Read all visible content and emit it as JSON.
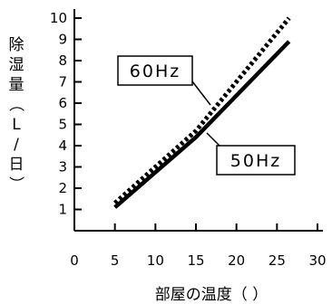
{
  "chart_data": {
    "type": "line",
    "xlabel": "部屋の温度（ ）",
    "ylabel": "除湿量（L/日）",
    "xlim": [
      0,
      30
    ],
    "ylim": [
      0,
      10
    ],
    "x_ticks": [
      "0",
      "5",
      "10",
      "15",
      "20",
      "25",
      "30"
    ],
    "y_ticks": [
      "1",
      "2",
      "3",
      "4",
      "5",
      "6",
      "7",
      "8",
      "9",
      "10"
    ],
    "grid": false,
    "series": [
      {
        "name": "60Hz",
        "style": "dotted",
        "x": [
          5,
          15,
          26.5
        ],
        "y": [
          1.3,
          4.7,
          10
        ]
      },
      {
        "name": "50Hz",
        "style": "solid",
        "x": [
          5,
          15,
          26.5
        ],
        "y": [
          1.1,
          4.4,
          8.9
        ]
      }
    ],
    "annotations": [
      "60Hz",
      "50Hz"
    ]
  }
}
